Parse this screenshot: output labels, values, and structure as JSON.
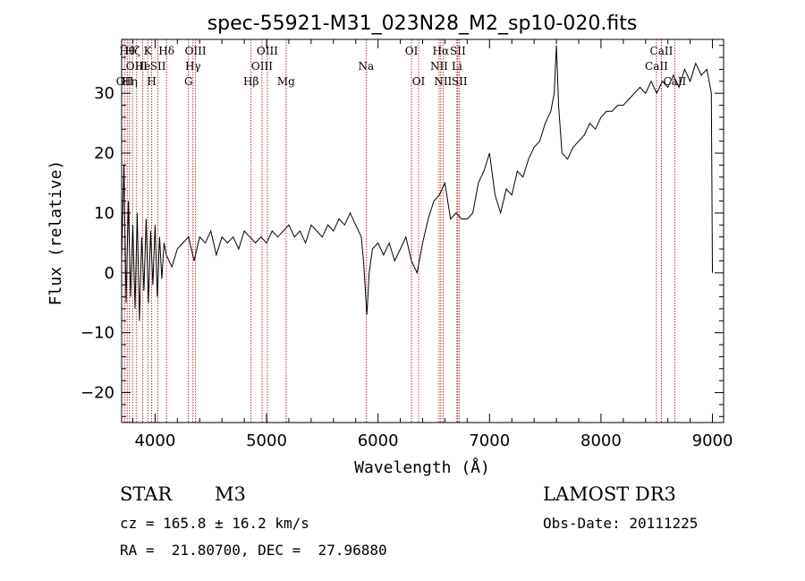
{
  "chart_data": {
    "type": "line",
    "title": "spec-55921-M31_023N28_M2_sp10-020.fits",
    "xlabel": "Wavelength (Å)",
    "ylabel": "Flux (relative)",
    "xlim": [
      3700,
      9100
    ],
    "ylim": [
      -25,
      39
    ],
    "x_ticks": [
      4000,
      5000,
      6000,
      7000,
      8000,
      9000
    ],
    "y_ticks": [
      -20,
      -10,
      0,
      10,
      20,
      30
    ],
    "tick_labels_x": [
      "4000",
      "5000",
      "6000",
      "7000",
      "8000",
      "9000"
    ],
    "tick_labels_y": [
      "−20",
      "−10",
      "0",
      "10",
      "20",
      "30"
    ],
    "series": [
      {
        "name": "flux",
        "x": [
          3700,
          3720,
          3740,
          3760,
          3780,
          3800,
          3820,
          3840,
          3860,
          3880,
          3900,
          3920,
          3940,
          3960,
          3980,
          4000,
          4020,
          4040,
          4060,
          4080,
          4100,
          4150,
          4200,
          4250,
          4300,
          4350,
          4400,
          4450,
          4500,
          4550,
          4600,
          4650,
          4700,
          4750,
          4800,
          4850,
          4900,
          4950,
          5000,
          5050,
          5100,
          5150,
          5200,
          5250,
          5300,
          5350,
          5400,
          5450,
          5500,
          5550,
          5600,
          5650,
          5700,
          5750,
          5800,
          5850,
          5870,
          5900,
          5920,
          5950,
          6000,
          6050,
          6100,
          6150,
          6200,
          6250,
          6300,
          6350,
          6400,
          6450,
          6500,
          6550,
          6600,
          6650,
          6700,
          6750,
          6800,
          6850,
          6900,
          6950,
          7000,
          7050,
          7100,
          7150,
          7200,
          7250,
          7300,
          7350,
          7400,
          7450,
          7500,
          7550,
          7580,
          7600,
          7620,
          7650,
          7700,
          7750,
          7800,
          7850,
          7900,
          7950,
          8000,
          8050,
          8100,
          8150,
          8200,
          8250,
          8300,
          8350,
          8400,
          8450,
          8500,
          8550,
          8600,
          8650,
          8700,
          8750,
          8800,
          8850,
          8900,
          8950,
          8990,
          9000
        ],
        "values": [
          2,
          18,
          -5,
          12,
          -4,
          8,
          -6,
          10,
          -8,
          6,
          -3,
          9,
          -5,
          7,
          -2,
          8,
          -4,
          6,
          -1,
          5,
          3,
          1,
          4,
          5,
          6,
          2,
          6,
          5,
          7,
          3,
          6,
          5,
          6,
          4,
          7,
          6,
          5,
          6,
          5,
          7,
          6,
          7,
          8,
          6,
          7,
          5,
          8,
          7,
          6,
          8,
          7,
          9,
          8,
          10,
          8,
          6,
          2,
          -7,
          0,
          4,
          5,
          3,
          5,
          2,
          4,
          6,
          2,
          0,
          5,
          9,
          12,
          13,
          15,
          9,
          10,
          9,
          9,
          10,
          15,
          17,
          20,
          13,
          10,
          14,
          13,
          17,
          16,
          19,
          21,
          22,
          25,
          27,
          30,
          38,
          28,
          20,
          19,
          21,
          22,
          23,
          25,
          24,
          26,
          27,
          27,
          28,
          28,
          29,
          30,
          31,
          30,
          32,
          30,
          32,
          31,
          33,
          31,
          34,
          32,
          35,
          33,
          34,
          30,
          0
        ]
      }
    ],
    "spectral_lines": [
      {
        "wavelength": 3727,
        "label": "OII",
        "row": 3
      },
      {
        "wavelength": 3750,
        "label": "Hθ",
        "row": 1
      },
      {
        "wavelength": 3771,
        "label": "Hη",
        "row": 3
      },
      {
        "wavelength": 3798,
        "label": "Hζ",
        "row": 1
      },
      {
        "wavelength": 3835,
        "label": "OIII",
        "row": 2
      },
      {
        "wavelength": 3889,
        "label": "He",
        "row": 2
      },
      {
        "wavelength": 3934,
        "label": "K",
        "row": 1
      },
      {
        "wavelength": 3970,
        "label": "H",
        "row": 3
      },
      {
        "wavelength": 4026,
        "label": "SII",
        "row": 2
      },
      {
        "wavelength": 4102,
        "label": "Hδ",
        "row": 1
      },
      {
        "wavelength": 4300,
        "label": "G",
        "row": 3
      },
      {
        "wavelength": 4340,
        "label": "Hγ",
        "row": 2
      },
      {
        "wavelength": 4363,
        "label": "OIII",
        "row": 1
      },
      {
        "wavelength": 4861,
        "label": "Hβ",
        "row": 3
      },
      {
        "wavelength": 4959,
        "label": "OIII",
        "row": 2
      },
      {
        "wavelength": 5007,
        "label": "OIII",
        "row": 1
      },
      {
        "wavelength": 5175,
        "label": "Mg",
        "row": 3
      },
      {
        "wavelength": 5893,
        "label": "Na",
        "row": 2
      },
      {
        "wavelength": 6300,
        "label": "OI",
        "row": 1
      },
      {
        "wavelength": 6364,
        "label": "OI",
        "row": 3
      },
      {
        "wavelength": 6548,
        "label": "NII",
        "row": 2
      },
      {
        "wavelength": 6563,
        "label": "Hα",
        "row": 1
      },
      {
        "wavelength": 6583,
        "label": "NII",
        "row": 3
      },
      {
        "wavelength": 6708,
        "label": "Li",
        "row": 2
      },
      {
        "wavelength": 6716,
        "label": "SII",
        "row": 1
      },
      {
        "wavelength": 6731,
        "label": "SII",
        "row": 3
      },
      {
        "wavelength": 8498,
        "label": "CaII",
        "row": 2
      },
      {
        "wavelength": 8542,
        "label": "CaII",
        "row": 1
      },
      {
        "wavelength": 8662,
        "label": "CaII",
        "row": 3
      }
    ],
    "grid": false,
    "legend": "none"
  },
  "info": {
    "object_class": "STAR",
    "subclass": "M3",
    "survey": "LAMOST DR3",
    "redshift": "cz = 165.8 ± 16.2 km/s",
    "obs_date": "Obs-Date: 20111225",
    "coords": "RA =  21.80700, DEC =  27.96880"
  },
  "colors": {
    "axis": "#000000",
    "spectrum": "#000000",
    "line_marker": "#a40000"
  }
}
